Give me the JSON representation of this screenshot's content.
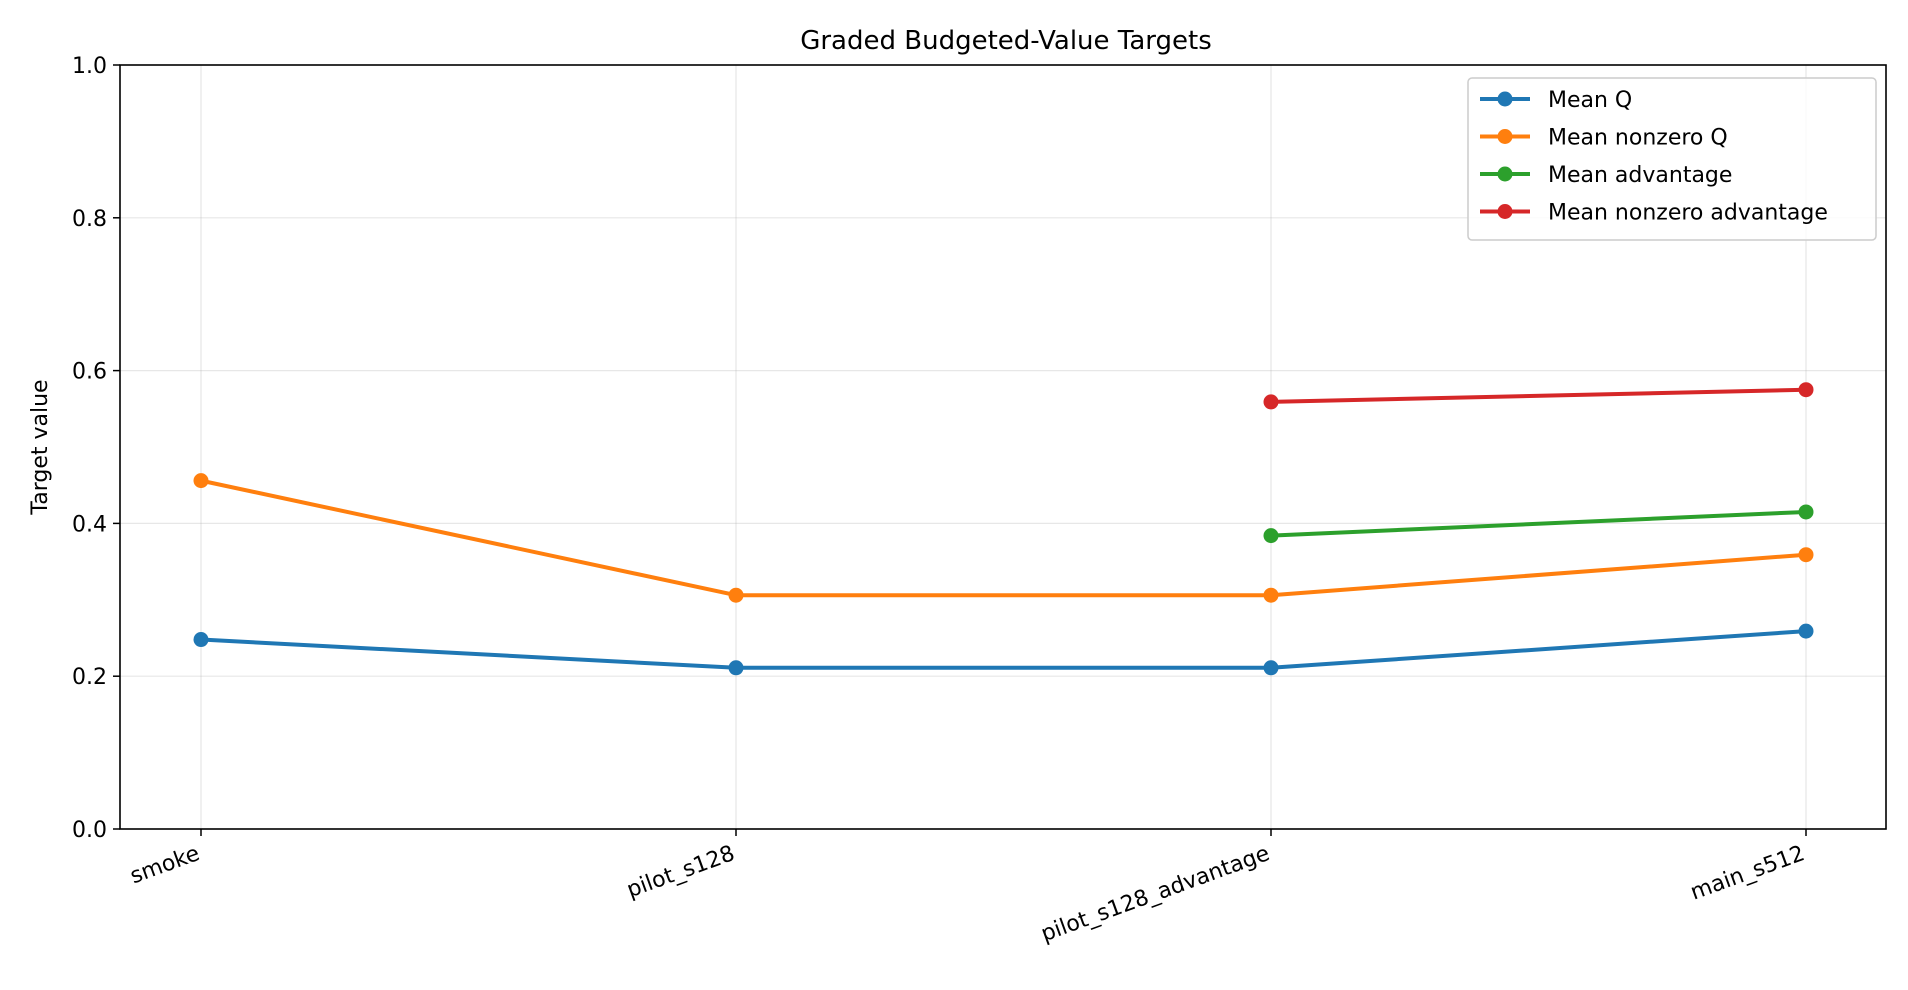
{
  "chart_data": {
    "type": "line",
    "title": "Graded Budgeted-Value Targets",
    "xlabel": "",
    "ylabel": "Target value",
    "categories": [
      "smoke",
      "pilot_s128",
      "pilot_s128_advantage",
      "main_s512"
    ],
    "ylim": [
      0,
      1.0
    ],
    "yticks": [
      "0.0",
      "0.2",
      "0.4",
      "0.6",
      "0.8",
      "1.0"
    ],
    "grid": true,
    "legend_position": "top-right",
    "series": [
      {
        "name": "Mean Q",
        "color": "#1f77b4",
        "values": [
          0.248,
          0.211,
          0.211,
          0.259
        ]
      },
      {
        "name": "Mean nonzero Q",
        "color": "#ff7f0e",
        "values": [
          0.456,
          0.306,
          0.306,
          0.359
        ]
      },
      {
        "name": "Mean advantage",
        "color": "#2ca02c",
        "values": [
          null,
          null,
          0.384,
          0.415
        ]
      },
      {
        "name": "Mean nonzero advantage",
        "color": "#d62728",
        "values": [
          null,
          null,
          0.559,
          0.575
        ]
      }
    ]
  }
}
